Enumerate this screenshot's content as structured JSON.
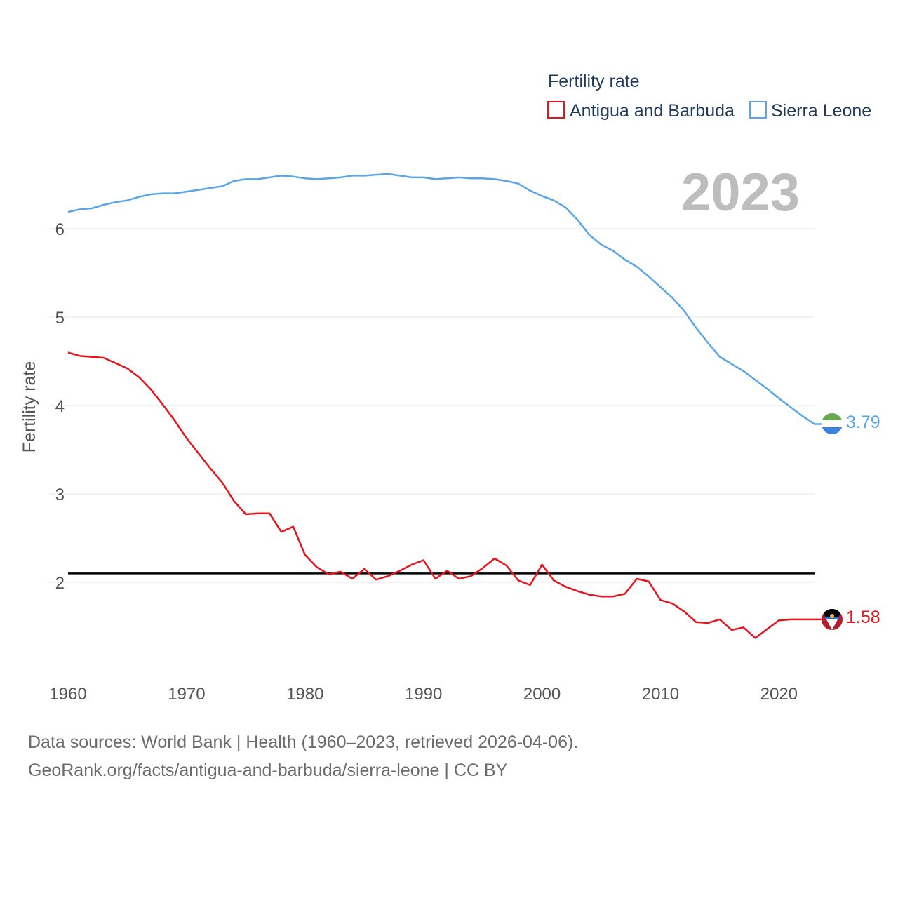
{
  "chart_data": {
    "type": "line",
    "title": "Fertility rate",
    "ylabel": "Fertility rate",
    "xlabel": "",
    "year_label": "2023",
    "xlim": [
      1960,
      2023
    ],
    "ylim": [
      1.0,
      6.8
    ],
    "y_ticks": [
      2,
      3,
      4,
      5,
      6
    ],
    "x_ticks": [
      1960,
      1970,
      1980,
      1990,
      2000,
      2010,
      2020
    ],
    "reference_line": 2.1,
    "x": [
      1960,
      1961,
      1962,
      1963,
      1964,
      1965,
      1966,
      1967,
      1968,
      1969,
      1970,
      1971,
      1972,
      1973,
      1974,
      1975,
      1976,
      1977,
      1978,
      1979,
      1980,
      1981,
      1982,
      1983,
      1984,
      1985,
      1986,
      1987,
      1988,
      1989,
      1990,
      1991,
      1992,
      1993,
      1994,
      1995,
      1996,
      1997,
      1998,
      1999,
      2000,
      2001,
      2002,
      2003,
      2004,
      2005,
      2006,
      2007,
      2008,
      2009,
      2010,
      2011,
      2012,
      2013,
      2014,
      2015,
      2016,
      2017,
      2018,
      2019,
      2020,
      2021,
      2022,
      2023
    ],
    "series": [
      {
        "name": "Antigua and Barbuda",
        "color": "#e8131b",
        "end_label": "1.58",
        "values": [
          4.6,
          4.56,
          4.55,
          4.54,
          4.48,
          4.42,
          4.32,
          4.18,
          4.01,
          3.83,
          3.63,
          3.46,
          3.29,
          3.13,
          2.92,
          2.77,
          2.78,
          2.78,
          2.57,
          2.63,
          2.31,
          2.17,
          2.09,
          2.12,
          2.04,
          2.15,
          2.03,
          2.07,
          2.13,
          2.2,
          2.25,
          2.04,
          2.13,
          2.04,
          2.07,
          2.16,
          2.27,
          2.19,
          2.02,
          1.97,
          2.2,
          2.02,
          1.95,
          1.9,
          1.86,
          1.84,
          1.84,
          1.87,
          2.04,
          2.01,
          1.8,
          1.76,
          1.67,
          1.55,
          1.54,
          1.58,
          1.46,
          1.49,
          1.37,
          1.47,
          1.57,
          1.58,
          1.58,
          1.58
        ]
      },
      {
        "name": "Sierra Leone",
        "color": "#5aa5e8",
        "end_label": "3.79",
        "values": [
          6.19,
          6.22,
          6.23,
          6.27,
          6.3,
          6.32,
          6.36,
          6.39,
          6.4,
          6.4,
          6.42,
          6.44,
          6.46,
          6.48,
          6.54,
          6.56,
          6.56,
          6.58,
          6.6,
          6.59,
          6.57,
          6.56,
          6.57,
          6.58,
          6.6,
          6.6,
          6.61,
          6.62,
          6.6,
          6.58,
          6.58,
          6.56,
          6.57,
          6.58,
          6.57,
          6.57,
          6.56,
          6.54,
          6.51,
          6.43,
          6.37,
          6.32,
          6.24,
          6.1,
          5.93,
          5.82,
          5.75,
          5.65,
          5.57,
          5.46,
          5.34,
          5.22,
          5.07,
          4.88,
          4.71,
          4.55,
          4.47,
          4.39,
          4.29,
          4.19,
          4.08,
          3.98,
          3.88,
          3.79
        ]
      }
    ]
  },
  "legend": {
    "title": "Fertility rate",
    "items": [
      "Antigua and Barbuda",
      "Sierra Leone"
    ]
  },
  "footer": {
    "line1": "Data sources: World Bank | Health (1960–2023, retrieved 2026-04-06).",
    "line2": "GeoRank.org/facts/antigua-and-barbuda/sierra-leone | CC BY"
  }
}
